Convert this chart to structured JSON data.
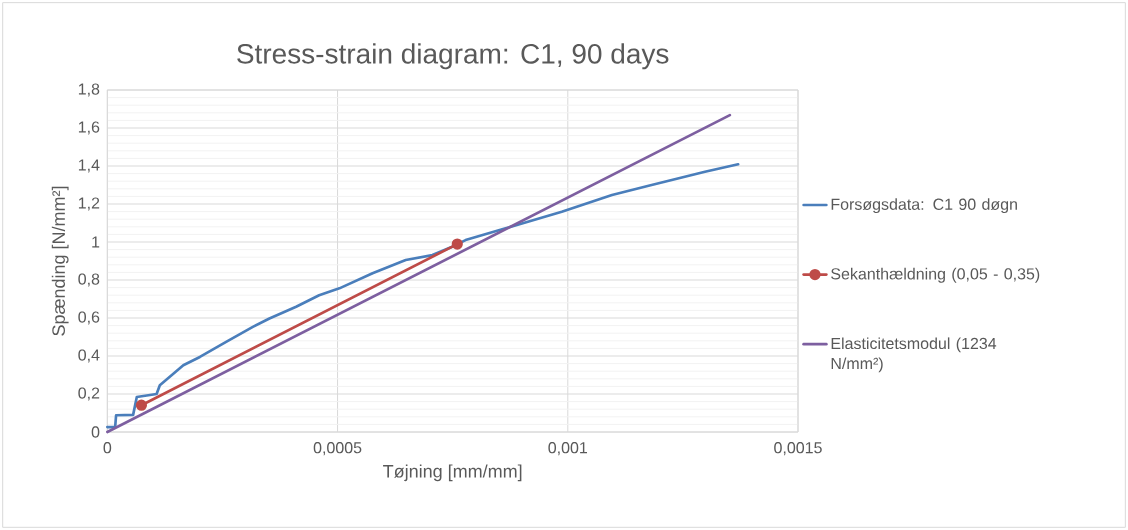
{
  "chart_data": {
    "type": "line",
    "title": "Stress-strain diagram: C1, 90 days",
    "xlabel": "Tøjning [mm/mm]",
    "ylabel": "Spænding [N/mm²]",
    "series": [
      {
        "name": "Forsøgsdata: C1 90 døgn",
        "color": "#4a7ebb",
        "x": [
          0,
          1.7e-05,
          1.9e-05,
          5.6e-05,
          6.4e-05,
          0.000107,
          0.000114,
          0.000165,
          0.000201,
          0.000258,
          0.000316,
          0.000352,
          0.00041,
          0.00046,
          0.000504,
          0.000576,
          0.000648,
          0.000706,
          0.000749,
          0.000778,
          0.000865,
          0.000987,
          0.001096,
          0.001182,
          0.001298,
          0.00137
        ],
        "values": [
          0.026,
          0.026,
          0.088,
          0.09,
          0.184,
          0.2,
          0.246,
          0.351,
          0.395,
          0.474,
          0.553,
          0.597,
          0.659,
          0.72,
          0.756,
          0.835,
          0.905,
          0.931,
          0.975,
          1.01,
          1.072,
          1.159,
          1.247,
          1.3,
          1.37,
          1.409
        ]
      },
      {
        "name": "Sekanthældning (0,05 - 0,35)",
        "color": "#be4b48",
        "marker": "circle",
        "x": [
          7.4e-05,
          0.00076
        ],
        "values": [
          0.141,
          0.989
        ]
      },
      {
        "name": "Elasticitetsmodul (1234 N/mm²)",
        "color": "#7d5fa0",
        "x": [
          0,
          0.001352
        ],
        "values": [
          0,
          1.668
        ]
      }
    ],
    "xlim": [
      0,
      0.0015
    ],
    "ylim": [
      0,
      1.8
    ],
    "xticks": [
      0,
      {
        "value": 0.0005,
        "label": "0,0005"
      },
      {
        "value": 0.001,
        "label": "0,001"
      },
      {
        "value": 0.0015,
        "label": "0,0015"
      }
    ],
    "yticks": [
      0,
      {
        "value": 0.2,
        "label": "0,2"
      },
      {
        "value": 0.4,
        "label": "0,4"
      },
      {
        "value": 0.6,
        "label": "0,6"
      },
      {
        "value": 0.8,
        "label": "0,8"
      },
      1,
      {
        "value": 1.2,
        "label": "1,2"
      },
      {
        "value": 1.4,
        "label": "1,4"
      },
      {
        "value": 1.6,
        "label": "1,6"
      },
      {
        "value": 1.8,
        "label": "1,8"
      }
    ],
    "grid": true,
    "legend": "right",
    "line_style": "solid",
    "marker": "none"
  }
}
